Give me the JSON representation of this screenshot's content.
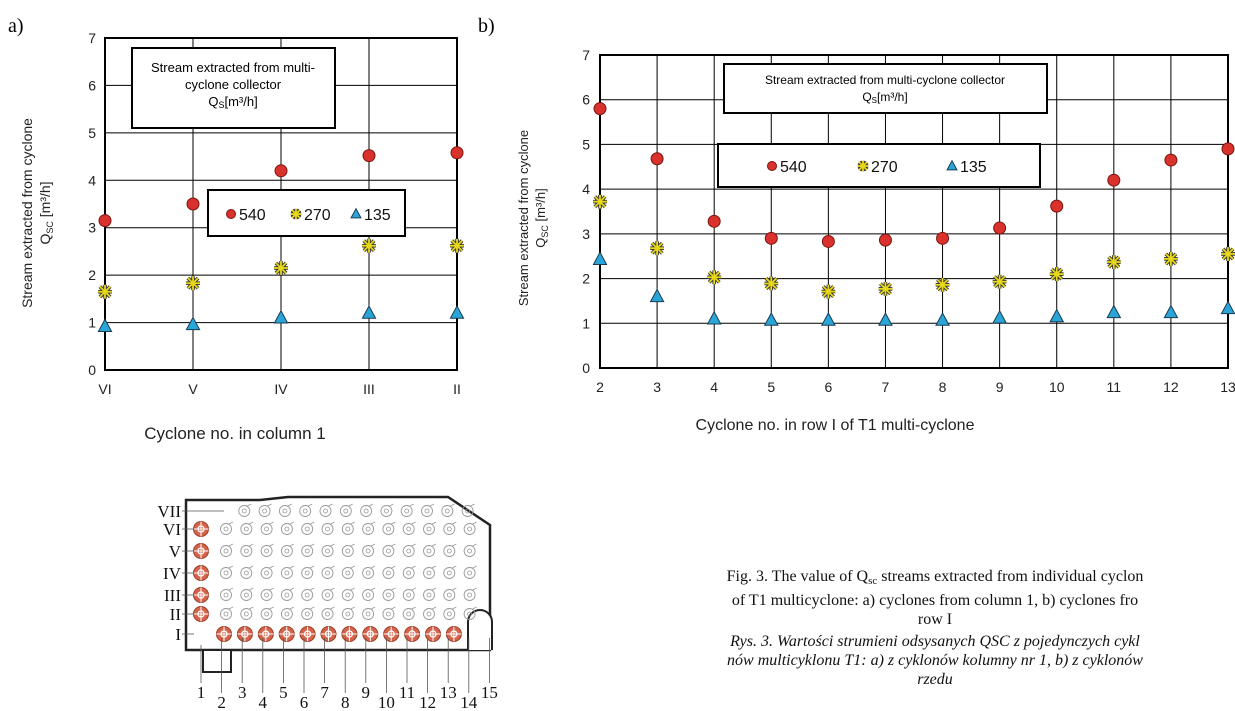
{
  "panel_labels": {
    "a": "a)",
    "b": "b)"
  },
  "chart_data": [
    {
      "type": "scatter",
      "id": "a",
      "title": "",
      "box_text": [
        "Stream extracted from multi-",
        "cyclone collector"
      ],
      "box_unit": "Q",
      "box_unit_sub": "S",
      "box_unit_tail": "[m³/h]",
      "ylabel_line1": "Stream extracted from cyclone",
      "ylabel_line2": "Q",
      "ylabel_line2_sub": "SC",
      "ylabel_line2_tail": " [m³/h]",
      "xlabel": "Cyclone no. in column 1",
      "categories": [
        "VI",
        "V",
        "IV",
        "III",
        "II"
      ],
      "yticks": [
        "0",
        "1",
        "2",
        "3",
        "4",
        "5",
        "6",
        "7"
      ],
      "ylim": [
        0,
        7
      ],
      "grid": true,
      "legend_position": "center-right",
      "series": [
        {
          "name": "540",
          "marker": "circle",
          "color": "#d9312b",
          "values": [
            3.15,
            3.5,
            4.2,
            4.52,
            4.58
          ]
        },
        {
          "name": "270",
          "marker": "star",
          "color": "#e8d81a",
          "values": [
            1.65,
            1.83,
            2.15,
            2.62,
            2.62
          ]
        },
        {
          "name": "135",
          "marker": "triangle",
          "color": "#2aa5d8",
          "values": [
            0.92,
            0.96,
            1.1,
            1.2,
            1.2
          ]
        }
      ]
    },
    {
      "type": "scatter",
      "id": "b",
      "title": "",
      "box_text": [
        "Stream extracted from multi-cyclone collector"
      ],
      "box_unit": "Q",
      "box_unit_sub": "S",
      "box_unit_tail": "[m³/h]",
      "ylabel_line1": "Stream extracted from cyclone",
      "ylabel_line2": "Q",
      "ylabel_line2_sub": "SC",
      "ylabel_line2_tail": " [m³/h]",
      "xlabel": "Cyclone no. in row I of  T1 multi-cyclone",
      "categories": [
        "2",
        "3",
        "4",
        "5",
        "6",
        "7",
        "8",
        "9",
        "10",
        "11",
        "12",
        "13"
      ],
      "yticks": [
        "0",
        "1",
        "2",
        "3",
        "4",
        "5",
        "6",
        "7"
      ],
      "ylim": [
        0,
        7
      ],
      "grid": true,
      "legend_position": "top-center",
      "series": [
        {
          "name": "540",
          "marker": "circle",
          "color": "#d9312b",
          "values": [
            5.8,
            4.68,
            3.28,
            2.9,
            2.83,
            2.86,
            2.9,
            3.13,
            3.62,
            4.2,
            4.65,
            4.9
          ]
        },
        {
          "name": "270",
          "marker": "star",
          "color": "#e8d81a",
          "values": [
            3.72,
            2.68,
            2.03,
            1.89,
            1.71,
            1.77,
            1.86,
            1.93,
            2.1,
            2.37,
            2.44,
            2.55
          ]
        },
        {
          "name": "135",
          "marker": "triangle",
          "color": "#2aa5d8",
          "values": [
            2.43,
            1.6,
            1.1,
            1.07,
            1.07,
            1.07,
            1.07,
            1.12,
            1.15,
            1.24,
            1.24,
            1.33
          ]
        }
      ]
    }
  ],
  "diagram": {
    "row_labels": [
      "VII",
      "VI",
      "V",
      "IV",
      "III",
      "II",
      "I"
    ],
    "column_numbers": [
      "1",
      "2",
      "3",
      "4",
      "5",
      "6",
      "7",
      "8",
      "9",
      "10",
      "11",
      "12",
      "13",
      "14",
      "15"
    ],
    "highlight_color": "#d4654c"
  },
  "caption_en": {
    "line1_prefix": "Fig. 3. The value of Q",
    "line1_sub": "sc",
    "line1_rest": " streams extracted from individual cyclon",
    "line2": "of T1 multicyclone: a) cyclones from column 1, b) cyclones fro",
    "line3": "row I"
  },
  "caption_pl": {
    "line1": "Rys. 3. Wartości strumieni odsysanych QSC z pojedynczych cykl",
    "line2": "nów multicyklonu T1: a) z cyklonów kolumny nr 1, b) z cyklonów",
    "line3": "rzedu"
  }
}
